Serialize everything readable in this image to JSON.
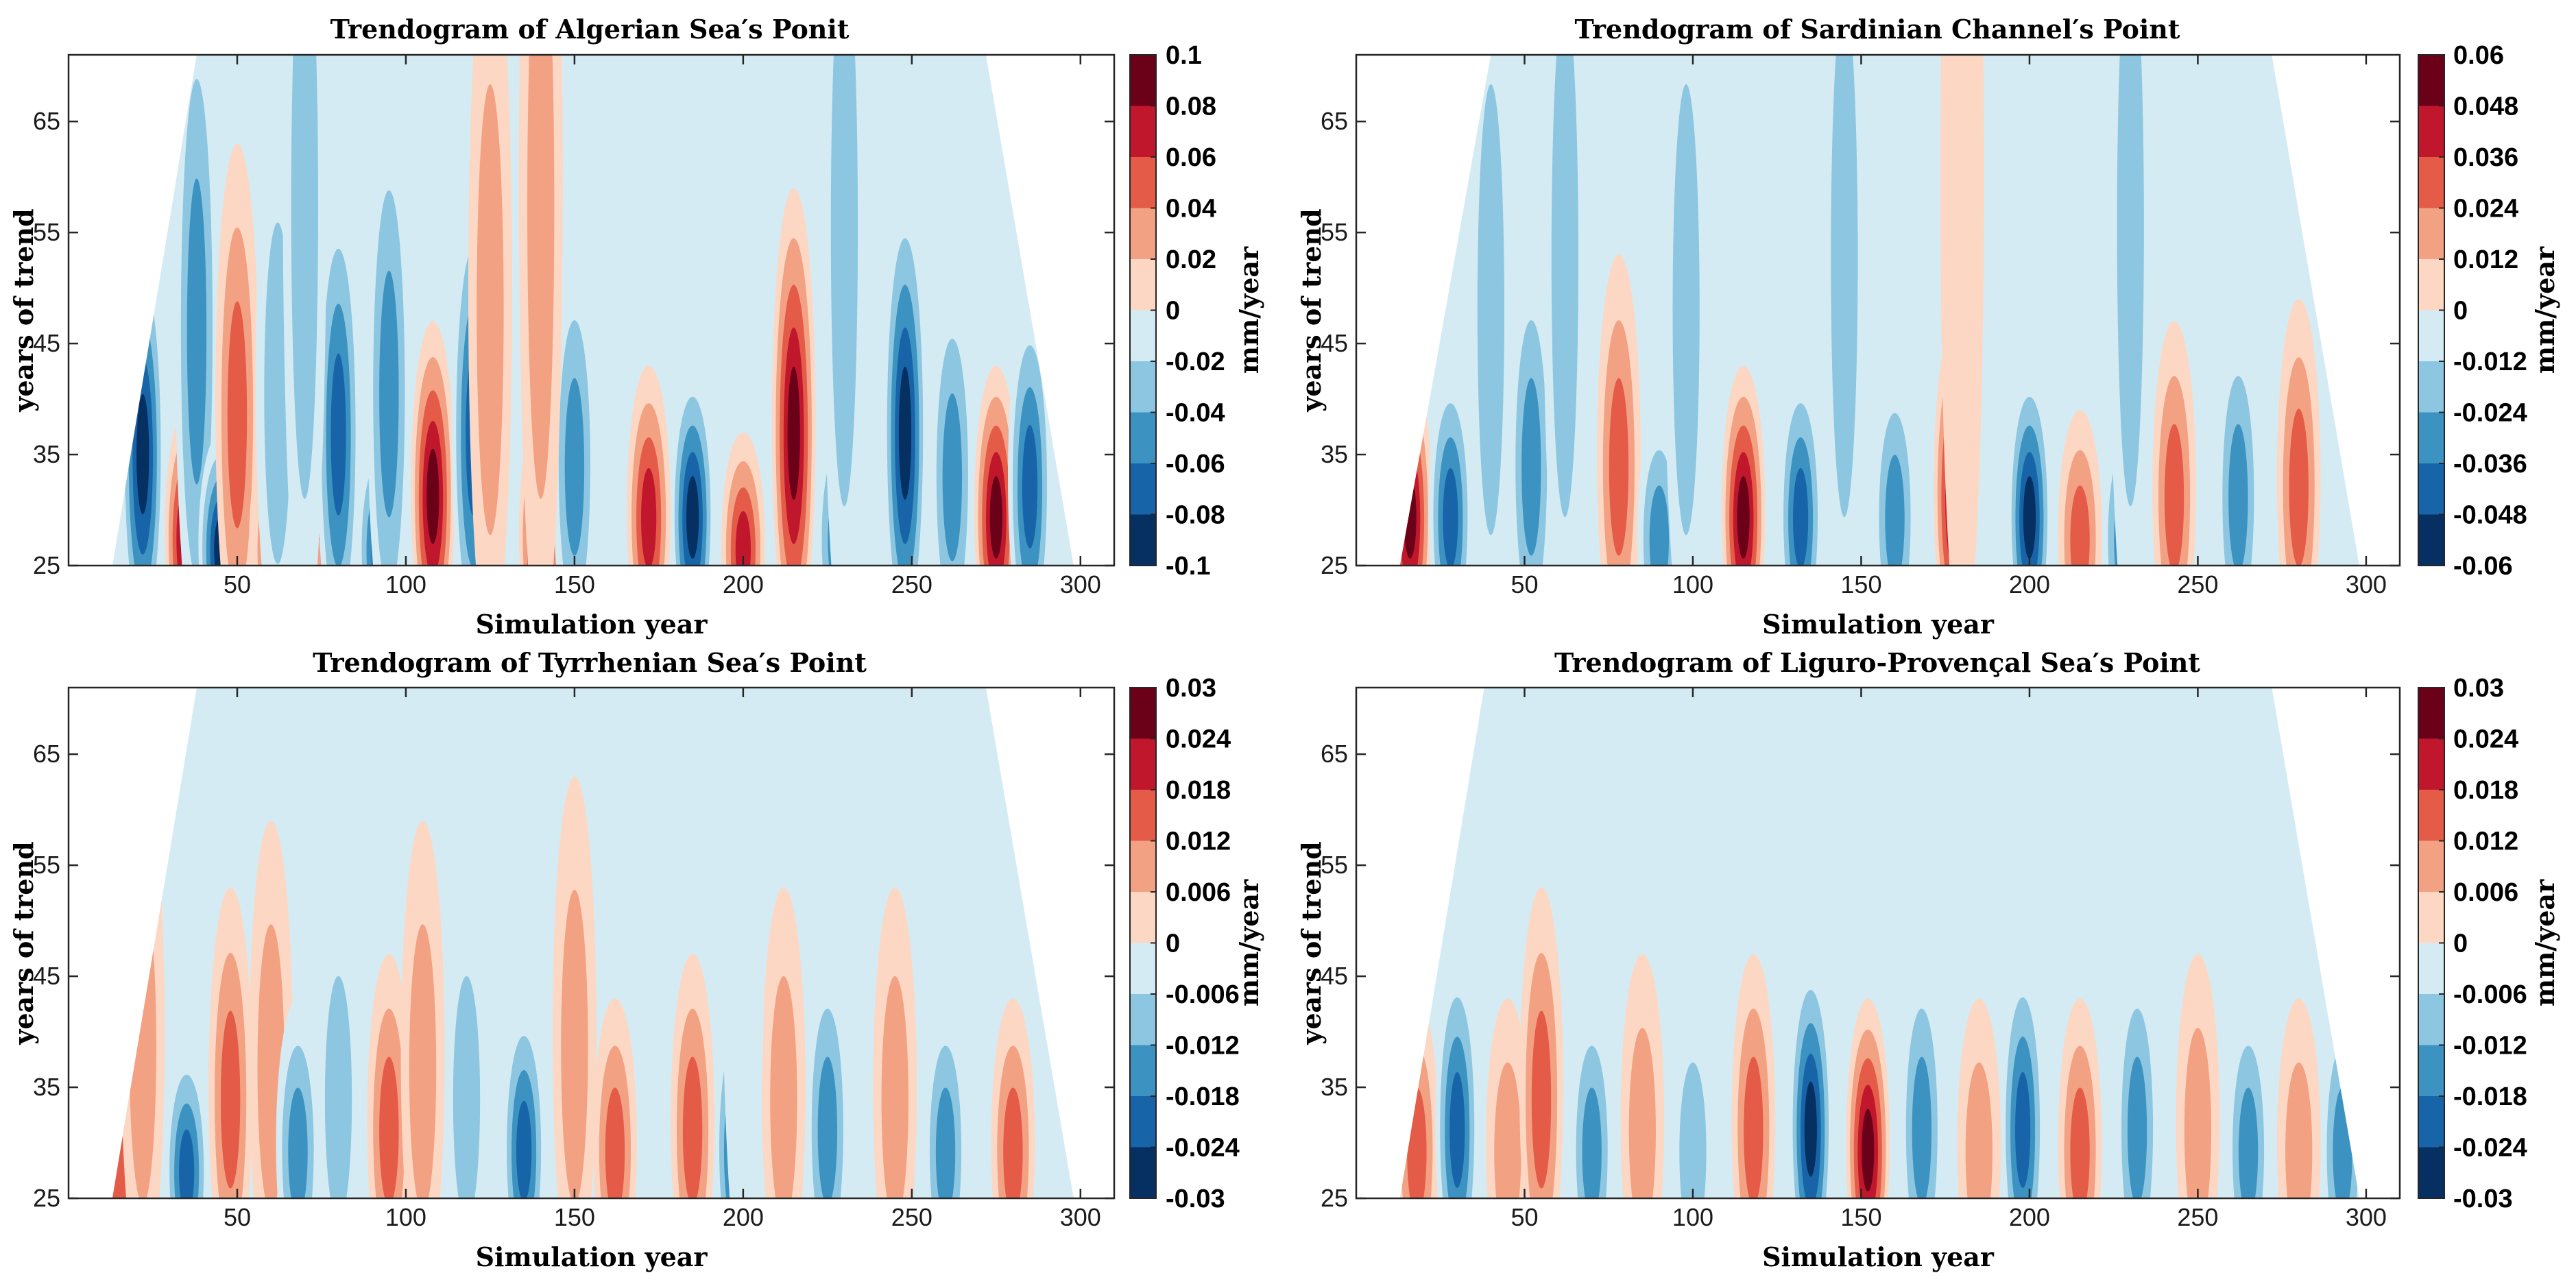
{
  "chart_data": [
    {
      "type": "heatmap",
      "title": "Trendogram of Algerian Sea′s Ponit",
      "xlabel": "Simulation year",
      "ylabel": "years of trend",
      "xlim": [
        0,
        310
      ],
      "ylim": [
        25,
        71
      ],
      "xticks": [
        "50",
        "100",
        "150",
        "200",
        "250",
        "300"
      ],
      "yticks": [
        "25",
        "35",
        "45",
        "55",
        "65"
      ],
      "colorbar": {
        "label": "mm/year",
        "ticks": [
          "0.1",
          "0.08",
          "0.06",
          "0.04",
          "0.02",
          "0",
          "-0.02",
          "-0.04",
          "-0.06",
          "-0.08",
          "-0.1"
        ]
      },
      "valid_region": {
        "x_start_at_y25": 13,
        "x_end_at_y25": 298,
        "x_start_at_top": 38,
        "x_end_at_top": 272
      },
      "features": [
        {
          "x": 22,
          "y": 36,
          "v": -0.09
        },
        {
          "x": 35,
          "y": 28,
          "v": 0.09
        },
        {
          "x": 38,
          "y": 48,
          "v": -0.05
        },
        {
          "x": 45,
          "y": 27,
          "v": -0.09
        },
        {
          "x": 50,
          "y": 40,
          "v": 0.05
        },
        {
          "x": 60,
          "y": 27,
          "v": 0.04
        },
        {
          "x": 62,
          "y": 42,
          "v": -0.04
        },
        {
          "x": 73,
          "y": 36,
          "v": 0.06
        },
        {
          "x": 80,
          "y": 38,
          "v": -0.08
        },
        {
          "x": 92,
          "y": 27,
          "v": -0.08
        },
        {
          "x": 95,
          "y": 42,
          "v": -0.05
        },
        {
          "x": 108,
          "y": 32,
          "v": 0.09
        },
        {
          "x": 120,
          "y": 38,
          "v": -0.08
        },
        {
          "x": 125,
          "y": 50,
          "v": 0.03
        },
        {
          "x": 140,
          "y": 28,
          "v": 0.09
        },
        {
          "x": 150,
          "y": 35,
          "v": -0.06
        },
        {
          "x": 172,
          "y": 30,
          "v": 0.07
        },
        {
          "x": 185,
          "y": 30,
          "v": -0.09
        },
        {
          "x": 200,
          "y": 27,
          "v": 0.07
        },
        {
          "x": 215,
          "y": 38,
          "v": 0.09
        },
        {
          "x": 228,
          "y": 28,
          "v": -0.06
        },
        {
          "x": 248,
          "y": 38,
          "v": -0.09
        },
        {
          "x": 262,
          "y": 34,
          "v": -0.06
        },
        {
          "x": 275,
          "y": 30,
          "v": 0.09
        },
        {
          "x": 285,
          "y": 33,
          "v": -0.08
        },
        {
          "x": 70,
          "y": 60,
          "v": -0.03
        },
        {
          "x": 140,
          "y": 60,
          "v": 0.03
        },
        {
          "x": 230,
          "y": 58,
          "v": -0.03
        }
      ]
    },
    {
      "type": "heatmap",
      "title": "Trendogram of Sardinian Channel′s Point",
      "xlabel": "Simulation year",
      "ylabel": "years of trend",
      "xlim": [
        0,
        310
      ],
      "ylim": [
        25,
        71
      ],
      "xticks": [
        "50",
        "100",
        "150",
        "200",
        "250",
        "300"
      ],
      "yticks": [
        "25",
        "35",
        "45",
        "55",
        "65"
      ],
      "colorbar": {
        "label": "mm/year",
        "ticks": [
          "0.06",
          "0.048",
          "0.036",
          "0.024",
          "0.012",
          "0",
          "-0.012",
          "-0.024",
          "-0.036",
          "-0.048",
          "-0.06"
        ]
      },
      "valid_region": {
        "x_start_at_y25": 13,
        "x_end_at_y25": 298,
        "x_start_at_top": 40,
        "x_end_at_top": 272
      },
      "features": [
        {
          "x": 16,
          "y": 30,
          "v": 0.06
        },
        {
          "x": 28,
          "y": 30,
          "v": -0.05
        },
        {
          "x": 40,
          "y": 50,
          "v": -0.02
        },
        {
          "x": 52,
          "y": 35,
          "v": -0.03
        },
        {
          "x": 62,
          "y": 55,
          "v": -0.02
        },
        {
          "x": 78,
          "y": 35,
          "v": 0.03
        },
        {
          "x": 90,
          "y": 28,
          "v": -0.04
        },
        {
          "x": 98,
          "y": 50,
          "v": -0.02
        },
        {
          "x": 115,
          "y": 30,
          "v": 0.06
        },
        {
          "x": 132,
          "y": 30,
          "v": -0.05
        },
        {
          "x": 145,
          "y": 55,
          "v": -0.02
        },
        {
          "x": 160,
          "y": 30,
          "v": -0.04
        },
        {
          "x": 178,
          "y": 32,
          "v": 0.06
        },
        {
          "x": 200,
          "y": 30,
          "v": -0.06
        },
        {
          "x": 215,
          "y": 28,
          "v": 0.04
        },
        {
          "x": 228,
          "y": 28,
          "v": -0.04
        },
        {
          "x": 243,
          "y": 32,
          "v": 0.03
        },
        {
          "x": 262,
          "y": 32,
          "v": -0.03
        },
        {
          "x": 280,
          "y": 33,
          "v": 0.03
        },
        {
          "x": 180,
          "y": 60,
          "v": 0.01
        },
        {
          "x": 230,
          "y": 58,
          "v": -0.02
        }
      ]
    },
    {
      "type": "heatmap",
      "title": "Trendogram of Tyrrhenian Sea′s Point",
      "xlabel": "Simulation year",
      "ylabel": "years of trend",
      "xlim": [
        0,
        310
      ],
      "ylim": [
        25,
        71
      ],
      "xticks": [
        "50",
        "100",
        "150",
        "200",
        "250",
        "300"
      ],
      "yticks": [
        "25",
        "35",
        "45",
        "55",
        "65"
      ],
      "colorbar": {
        "label": "mm/year",
        "ticks": [
          "0.03",
          "0.024",
          "0.018",
          "0.012",
          "0.006",
          "0",
          "-0.006",
          "-0.012",
          "-0.018",
          "-0.024",
          "-0.03"
        ]
      },
      "valid_region": {
        "x_start_at_y25": 13,
        "x_end_at_y25": 298,
        "x_start_at_top": 38,
        "x_end_at_top": 272
      },
      "features": [
        {
          "x": 15,
          "y": 28,
          "v": 0.02
        },
        {
          "x": 22,
          "y": 40,
          "v": 0.01
        },
        {
          "x": 35,
          "y": 28,
          "v": -0.025
        },
        {
          "x": 48,
          "y": 35,
          "v": 0.015
        },
        {
          "x": 60,
          "y": 38,
          "v": 0.012
        },
        {
          "x": 68,
          "y": 30,
          "v": -0.015
        },
        {
          "x": 80,
          "y": 35,
          "v": -0.012
        },
        {
          "x": 95,
          "y": 32,
          "v": 0.015
        },
        {
          "x": 105,
          "y": 38,
          "v": 0.01
        },
        {
          "x": 118,
          "y": 35,
          "v": -0.012
        },
        {
          "x": 135,
          "y": 30,
          "v": -0.025
        },
        {
          "x": 150,
          "y": 40,
          "v": 0.01
        },
        {
          "x": 162,
          "y": 30,
          "v": 0.02
        },
        {
          "x": 185,
          "y": 32,
          "v": 0.015
        },
        {
          "x": 198,
          "y": 30,
          "v": -0.025
        },
        {
          "x": 212,
          "y": 35,
          "v": 0.01
        },
        {
          "x": 225,
          "y": 32,
          "v": -0.015
        },
        {
          "x": 245,
          "y": 35,
          "v": 0.012
        },
        {
          "x": 260,
          "y": 30,
          "v": -0.02
        },
        {
          "x": 280,
          "y": 30,
          "v": 0.02
        },
        {
          "x": 200,
          "y": 55,
          "v": -0.008
        }
      ]
    },
    {
      "type": "heatmap",
      "title": "Trendogram of Liguro-Provençal Sea′s Point",
      "xlabel": "Simulation year",
      "ylabel": "years of trend",
      "xlim": [
        0,
        310
      ],
      "ylim": [
        25,
        71
      ],
      "xticks": [
        "50",
        "100",
        "150",
        "200",
        "250",
        "300"
      ],
      "yticks": [
        "25",
        "35",
        "45",
        "55",
        "65"
      ],
      "colorbar": {
        "label": "mm/year",
        "ticks": [
          "0.03",
          "0.024",
          "0.018",
          "0.012",
          "0.006",
          "0",
          "-0.006",
          "-0.012",
          "-0.018",
          "-0.024",
          "-0.03"
        ]
      },
      "valid_region": {
        "x_start_at_y25": 13,
        "x_end_at_y25": 298,
        "x_start_at_top": 38,
        "x_end_at_top": 272
      },
      "features": [
        {
          "x": 18,
          "y": 30,
          "v": 0.015
        },
        {
          "x": 30,
          "y": 32,
          "v": -0.025
        },
        {
          "x": 45,
          "y": 30,
          "v": 0.012
        },
        {
          "x": 55,
          "y": 35,
          "v": 0.015
        },
        {
          "x": 70,
          "y": 30,
          "v": -0.015
        },
        {
          "x": 85,
          "y": 32,
          "v": 0.012
        },
        {
          "x": 100,
          "y": 30,
          "v": -0.012
        },
        {
          "x": 118,
          "y": 32,
          "v": 0.015
        },
        {
          "x": 135,
          "y": 32,
          "v": -0.028
        },
        {
          "x": 152,
          "y": 30,
          "v": 0.028
        },
        {
          "x": 168,
          "y": 32,
          "v": -0.015
        },
        {
          "x": 185,
          "y": 30,
          "v": 0.012
        },
        {
          "x": 198,
          "y": 32,
          "v": -0.025
        },
        {
          "x": 215,
          "y": 30,
          "v": 0.015
        },
        {
          "x": 232,
          "y": 32,
          "v": -0.02
        },
        {
          "x": 250,
          "y": 32,
          "v": 0.012
        },
        {
          "x": 265,
          "y": 30,
          "v": -0.02
        },
        {
          "x": 280,
          "y": 30,
          "v": 0.01
        },
        {
          "x": 293,
          "y": 30,
          "v": -0.015
        }
      ]
    }
  ],
  "colors": {
    "colorbar_top_to_bottom": [
      "#6b0019",
      "#c1172d",
      "#e45b48",
      "#f3a183",
      "#fcd8c4",
      "#d4ebf4",
      "#8dc6e0",
      "#3c93c2",
      "#1765a8",
      "#053061"
    ],
    "valid_background": "#d4ebf4",
    "axis": "#262626"
  }
}
